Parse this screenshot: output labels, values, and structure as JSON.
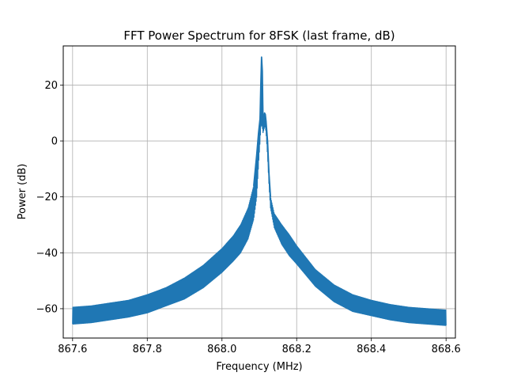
{
  "chart_data": {
    "type": "line",
    "title": "FFT Power Spectrum for 8FSK (last frame, dB)",
    "xlabel": "Frequency (MHz)",
    "ylabel": "Power (dB)",
    "xlim": [
      867.575,
      868.625
    ],
    "ylim": [
      -70.5,
      34
    ],
    "grid": true,
    "line_color": "#1f77b4",
    "x_ticks": [
      867.6,
      867.8,
      868.0,
      868.2,
      868.4,
      868.6
    ],
    "x_tick_labels": [
      "867.6",
      "867.8",
      "868.0",
      "868.2",
      "868.4",
      "868.6"
    ],
    "y_ticks": [
      20,
      0,
      -20,
      -40,
      -60
    ],
    "y_tick_labels": [
      "20",
      "0",
      "−20",
      "−40",
      "−60"
    ],
    "series": [
      {
        "upper_envelope": {
          "x": [
            867.6,
            867.65,
            867.7,
            867.75,
            867.8,
            867.85,
            867.9,
            867.95,
            868.0,
            868.03,
            868.05,
            868.07,
            868.085,
            868.093,
            868.098,
            868.102,
            868.104,
            868.106,
            868.108,
            868.11,
            868.112,
            868.114,
            868.116,
            868.118,
            868.122,
            868.126,
            868.13,
            868.14,
            868.16,
            868.18,
            868.2,
            868.25,
            868.3,
            868.35,
            868.4,
            868.45,
            868.5,
            868.55,
            868.6
          ],
          "y": [
            -59.5,
            -59.0,
            -58.0,
            -57.0,
            -55.0,
            -52.5,
            -49.0,
            -44.5,
            -38.5,
            -34.0,
            -30.0,
            -24.0,
            -16.0,
            -5.0,
            3.0,
            8.0,
            20.0,
            30.0,
            25.0,
            6.0,
            8.0,
            10.0,
            9.5,
            7.0,
            0.0,
            -12.0,
            -20.0,
            -26.0,
            -30.0,
            -33.5,
            -37.5,
            -46.0,
            -51.5,
            -55.0,
            -57.0,
            -58.5,
            -59.5,
            -60.0,
            -60.5
          ]
        },
        "lower_envelope": {
          "x": [
            867.6,
            867.65,
            867.7,
            867.75,
            867.8,
            867.85,
            867.9,
            867.95,
            868.0,
            868.03,
            868.05,
            868.07,
            868.085,
            868.093,
            868.098,
            868.102,
            868.104,
            868.106,
            868.108,
            868.11,
            868.112,
            868.114,
            868.116,
            868.118,
            868.122,
            868.126,
            868.13,
            868.14,
            868.16,
            868.18,
            868.2,
            868.25,
            868.3,
            868.35,
            868.4,
            868.45,
            868.5,
            868.55,
            868.6
          ],
          "y": [
            -65.5,
            -65.0,
            -64.0,
            -63.0,
            -61.5,
            -59.0,
            -56.5,
            -52.5,
            -47.0,
            -43.0,
            -40.0,
            -35.0,
            -28.0,
            -20.0,
            -8.0,
            0.0,
            5.0,
            6.0,
            5.0,
            3.0,
            4.0,
            5.0,
            5.0,
            3.0,
            -5.0,
            -16.0,
            -24.0,
            -31.0,
            -37.0,
            -41.0,
            -44.0,
            -52.0,
            -57.5,
            -61.0,
            -62.5,
            -64.0,
            -65.0,
            -65.5,
            -66.0
          ]
        }
      }
    ]
  }
}
